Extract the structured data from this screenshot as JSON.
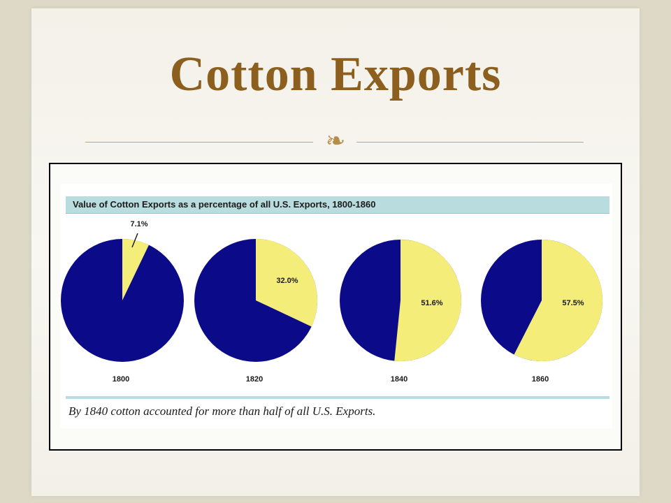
{
  "slide": {
    "title": "Cotton Exports",
    "ornament": ""
  },
  "figure": {
    "banner_title": "Value of Cotton Exports as a percentage of all U.S. Exports, 1800-1860",
    "caption": "By 1840 cotton accounted for more than half of all U.S. Exports."
  },
  "colors": {
    "cotton": "#f4ed79",
    "other": "#0b0b8a",
    "banner": "#b9dcde",
    "title": "#8c5f1e"
  },
  "chart_data": [
    {
      "type": "pie",
      "year_label": "1800",
      "cotton_percent": 7.1,
      "value_label": "7.1%"
    },
    {
      "type": "pie",
      "year_label": "1820",
      "cotton_percent": 32.0,
      "value_label": "32.0%"
    },
    {
      "type": "pie",
      "year_label": "1840",
      "cotton_percent": 51.6,
      "value_label": "51.6%"
    },
    {
      "type": "pie",
      "year_label": "1860",
      "cotton_percent": 57.5,
      "value_label": "57.5%"
    }
  ]
}
